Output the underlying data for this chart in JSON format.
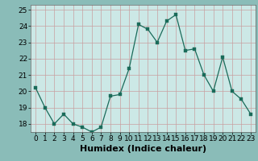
{
  "x": [
    0,
    1,
    2,
    3,
    4,
    5,
    6,
    7,
    8,
    9,
    10,
    11,
    12,
    13,
    14,
    15,
    16,
    17,
    18,
    19,
    20,
    21,
    22,
    23
  ],
  "y": [
    20.2,
    19.0,
    18.0,
    18.6,
    18.0,
    17.8,
    17.5,
    17.8,
    19.7,
    19.8,
    21.4,
    24.1,
    23.8,
    23.0,
    24.3,
    24.7,
    22.5,
    22.6,
    21.0,
    20.0,
    22.1,
    20.0,
    19.5,
    18.6
  ],
  "plot_bg_color": "#cce8e6",
  "fig_bg_color": "#8abcb8",
  "grid_color": "#c8a0a0",
  "line_color": "#1a6b5a",
  "marker_color": "#1a6b5a",
  "xlabel": "Humidex (Indice chaleur)",
  "xlabel_fontsize": 8,
  "ylim": [
    17.5,
    25.3
  ],
  "xlim": [
    -0.5,
    23.5
  ],
  "yticks": [
    18,
    19,
    20,
    21,
    22,
    23,
    24,
    25
  ],
  "xticks": [
    0,
    1,
    2,
    3,
    4,
    5,
    6,
    7,
    8,
    9,
    10,
    11,
    12,
    13,
    14,
    15,
    16,
    17,
    18,
    19,
    20,
    21,
    22,
    23
  ],
  "tick_fontsize": 6.5
}
